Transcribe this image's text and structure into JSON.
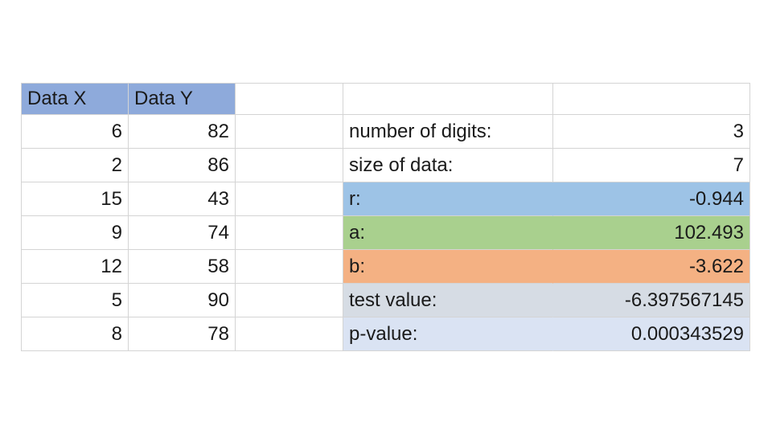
{
  "sheet": {
    "headers": {
      "x": "Data X",
      "y": "Data Y"
    },
    "data_rows": [
      {
        "x": "6",
        "y": "82"
      },
      {
        "x": "2",
        "y": "86"
      },
      {
        "x": "15",
        "y": "43"
      },
      {
        "x": "9",
        "y": "74"
      },
      {
        "x": "12",
        "y": "58"
      },
      {
        "x": "5",
        "y": "90"
      },
      {
        "x": "8",
        "y": "78"
      }
    ],
    "results": {
      "digits": {
        "label": "number of digits:",
        "value": "3"
      },
      "size": {
        "label": "size of data:",
        "value": "7"
      },
      "r": {
        "label": "r:",
        "value": "-0.944"
      },
      "a": {
        "label": "a:",
        "value": "102.493"
      },
      "b": {
        "label": "b:",
        "value": "-3.622"
      },
      "test_value": {
        "label": "test value:",
        "value": "-6.397567145"
      },
      "p_value": {
        "label": "p-value:",
        "value": "0.000343529"
      }
    },
    "colors": {
      "header": "#8eaadb",
      "r": "#9dc3e6",
      "a": "#a9d08e",
      "b": "#f4b183",
      "test_value": "#d6dce4",
      "p_value": "#dae3f3"
    }
  }
}
